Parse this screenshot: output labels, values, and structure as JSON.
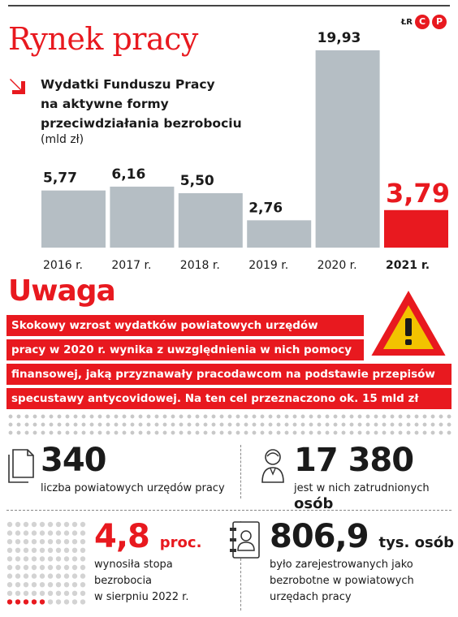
{
  "header": {
    "title": "Rynek pracy",
    "brand_small": "ŁR",
    "brand_c": "C",
    "brand_p": "P"
  },
  "chart_data": {
    "type": "bar",
    "title": "Wydatki Funduszu Pracy na aktywne formy przeciwdziałania bezrobociu",
    "title_lines": [
      "Wydatki Funduszu Pracy",
      "na aktywne formy",
      "przeciwdziałania bezrobociu"
    ],
    "unit": "(mld zł)",
    "categories": [
      "2016 r.",
      "2017 r.",
      "2018 r.",
      "2019 r.",
      "2020 r.",
      "2021 r."
    ],
    "values": [
      5.77,
      6.16,
      5.5,
      2.76,
      19.93,
      3.79
    ],
    "value_labels": [
      "5,77",
      "6,16",
      "5,50",
      "2,76",
      "19,93",
      "3,79"
    ],
    "highlight_index": 5,
    "colors": {
      "bar": "#b5bec4",
      "highlight": "#e8191f"
    },
    "ylim": [
      0,
      20
    ]
  },
  "notice": {
    "heading": "Uwaga",
    "lines": [
      "Skokowy wzrost wydatków powiatowych urzędów",
      "pracy w 2020 r. wynika z uwzględnienia w nich pomocy",
      "finansowej, jaką przyznawały pracodawcom na podstawie przepisów",
      "specustawy antycovidowej. Na ten cel przeznaczono ok. 15 mld zł"
    ],
    "warning_icon": "warning-triangle-icon"
  },
  "stats": [
    {
      "value": "340",
      "unit": "",
      "desc": [
        "liczba powiatowych urzędów pracy"
      ],
      "icon": "documents-icon"
    },
    {
      "value": "17 380",
      "unit": "osób",
      "desc": [
        "jest w nich zatrudnionych"
      ],
      "icon": "person-icon"
    },
    {
      "value": "4,8",
      "unit": "proc.",
      "desc": [
        "wynosiła stopa",
        "bezrobocia",
        "w sierpniu 2022 r."
      ],
      "icon": "dot-grid-icon"
    },
    {
      "value": "806,9",
      "unit": "tys. osób",
      "desc": [
        "było zarejestrowanych jako",
        "bezrobotne w powiatowych",
        "urzędach pracy"
      ],
      "icon": "person-file-icon"
    }
  ],
  "colors": {
    "accent": "#e8191f",
    "bar": "#b5bec4"
  }
}
